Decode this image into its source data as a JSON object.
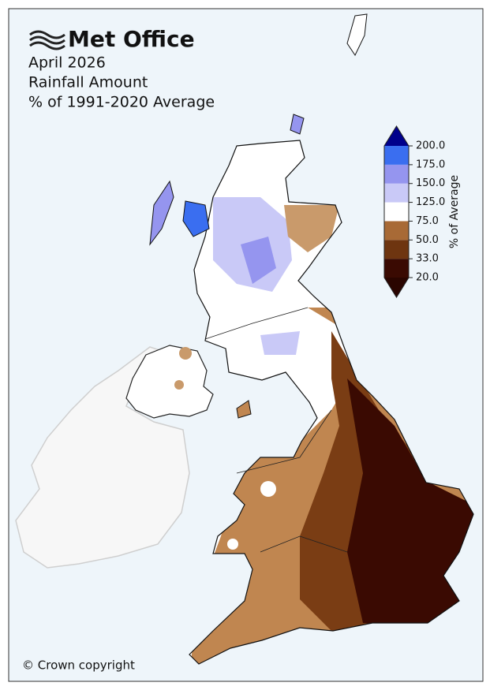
{
  "header": {
    "logo": "Met Office",
    "title_lines": [
      "April 2026",
      "Rainfall Amount",
      "% of 1991-2020 Average"
    ]
  },
  "colorbar": {
    "label": "% of Average",
    "ticks": [
      {
        "value": 20,
        "label": "20.0"
      },
      {
        "value": 33,
        "label": "33.0"
      },
      {
        "value": 50,
        "label": "50.0"
      },
      {
        "value": 75,
        "label": "75.0"
      },
      {
        "value": 125,
        "label": "125.0"
      },
      {
        "value": 150,
        "label": "150.0"
      },
      {
        "value": 175,
        "label": "175.0"
      },
      {
        "value": 200,
        "label": "200.0"
      }
    ],
    "colors": [
      "#3a0a02",
      "#6e3510",
      "#a86a36",
      "#ffffff",
      "#c9c9f7",
      "#9595ef",
      "#3a6ef0"
    ],
    "under_color": "#2a0500",
    "over_color": "#00008b"
  },
  "copyright": "© Crown copyright"
}
